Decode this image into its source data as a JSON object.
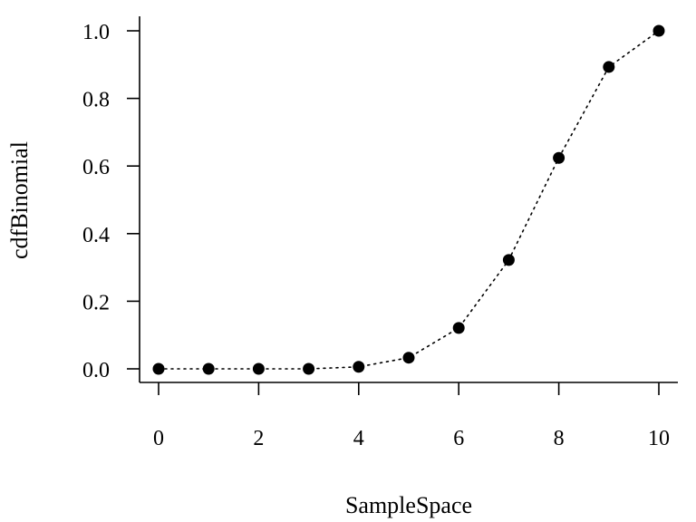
{
  "chart_data": {
    "type": "scatter",
    "xlabel": "SampleSpace",
    "ylabel": "cdfBinomial",
    "xlim": [
      0,
      10
    ],
    "ylim": [
      0,
      1
    ],
    "xticks": [
      0,
      2,
      4,
      6,
      8,
      10
    ],
    "yticks": [
      0,
      0.2,
      0.4,
      0.6,
      0.8,
      1
    ],
    "xtick_labels": [
      "0",
      "2",
      "4",
      "6",
      "8",
      "10"
    ],
    "ytick_labels": [
      "0.0",
      "0.2",
      "0.4",
      "0.6",
      "0.8",
      "1.0"
    ],
    "line_style": "dotted",
    "grid": false,
    "series": [
      {
        "x": [
          0,
          1,
          2,
          3,
          4,
          5,
          6,
          7,
          8,
          9,
          10
        ],
        "values": [
          0.0,
          0.0,
          0.0,
          0.0,
          0.006,
          0.033,
          0.121,
          0.322,
          0.624,
          0.893,
          1.0
        ]
      }
    ]
  }
}
